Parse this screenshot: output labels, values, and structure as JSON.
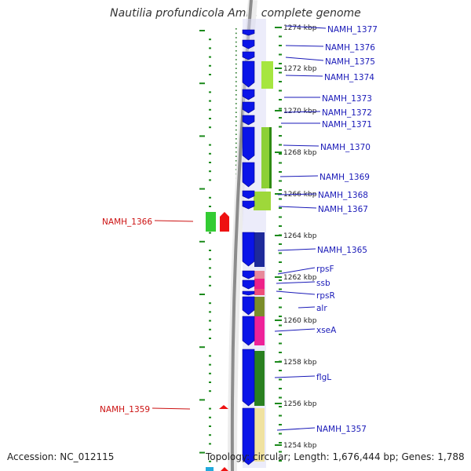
{
  "title": "Nautilia profundicola AmH, complete genome",
  "footer": {
    "accession": "Accession: NC_012115",
    "summary": "Topology: circular; Length: 1,676,444 bp; Genes: 1,788"
  },
  "colors": {
    "forward_gene": "#0a14e8",
    "reverse_gene": "#ee1111",
    "forward_label": "#1a1ab8",
    "reverse_label": "#cc1111",
    "backbone": "#8c8c8c",
    "tick": "#1c8a1c"
  },
  "scale_labels": [
    {
      "text": "1274 kbp",
      "kbp": 1274
    },
    {
      "text": "1272 kbp",
      "kbp": 1272
    },
    {
      "text": "1270 kbp",
      "kbp": 1270
    },
    {
      "text": "1268 kbp",
      "kbp": 1268
    },
    {
      "text": "1266 kbp",
      "kbp": 1266
    },
    {
      "text": "1264 kbp",
      "kbp": 1264
    },
    {
      "text": "1262 kbp",
      "kbp": 1262
    },
    {
      "text": "1260 kbp",
      "kbp": 1260
    },
    {
      "text": "1258 kbp",
      "kbp": 1258
    },
    {
      "text": "1256 kbp",
      "kbp": 1256
    },
    {
      "text": "1254 kbp",
      "kbp": 1254
    }
  ],
  "forward_gene_labels": [
    "NAMH_1377",
    "NAMH_1376",
    "NAMH_1375",
    "NAMH_1374",
    "NAMH_1373",
    "NAMH_1372",
    "NAMH_1371",
    "NAMH_1370",
    "NAMH_1369",
    "NAMH_1368",
    "NAMH_1367",
    "NAMH_1365",
    "rpsF",
    "ssb",
    "rpsR",
    "alr",
    "xseA",
    "flgL",
    "NAMH_1357"
  ],
  "reverse_gene_labels": [
    "NAMH_1366",
    "NAMH_1359"
  ]
}
